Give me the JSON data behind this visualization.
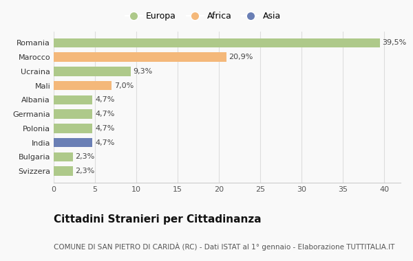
{
  "categories": [
    "Svizzera",
    "Bulgaria",
    "India",
    "Polonia",
    "Germania",
    "Albania",
    "Mali",
    "Ucraina",
    "Marocco",
    "Romania"
  ],
  "values": [
    2.3,
    2.3,
    4.7,
    4.7,
    4.7,
    4.7,
    7.0,
    9.3,
    20.9,
    39.5
  ],
  "labels": [
    "2,3%",
    "2,3%",
    "4,7%",
    "4,7%",
    "4,7%",
    "4,7%",
    "7,0%",
    "9,3%",
    "20,9%",
    "39,5%"
  ],
  "colors": [
    "#aec98a",
    "#aec98a",
    "#6a7fb5",
    "#aec98a",
    "#aec98a",
    "#aec98a",
    "#f4b87a",
    "#aec98a",
    "#f4b87a",
    "#aec98a"
  ],
  "legend": [
    {
      "label": "Europa",
      "color": "#aec98a"
    },
    {
      "label": "Africa",
      "color": "#f4b87a"
    },
    {
      "label": "Asia",
      "color": "#6a7fb5"
    }
  ],
  "xlim": [
    0,
    42
  ],
  "xticks": [
    0,
    5,
    10,
    15,
    20,
    25,
    30,
    35,
    40
  ],
  "title": "Cittadini Stranieri per Cittadinanza",
  "subtitle": "COMUNE DI SAN PIETRO DI CARIDÀ (RC) - Dati ISTAT al 1° gennaio - Elaborazione TUTTITALIA.IT",
  "background_color": "#f9f9f9",
  "bar_height": 0.65,
  "label_fontsize": 8,
  "title_fontsize": 11,
  "subtitle_fontsize": 7.5,
  "tick_fontsize": 8,
  "legend_fontsize": 9
}
